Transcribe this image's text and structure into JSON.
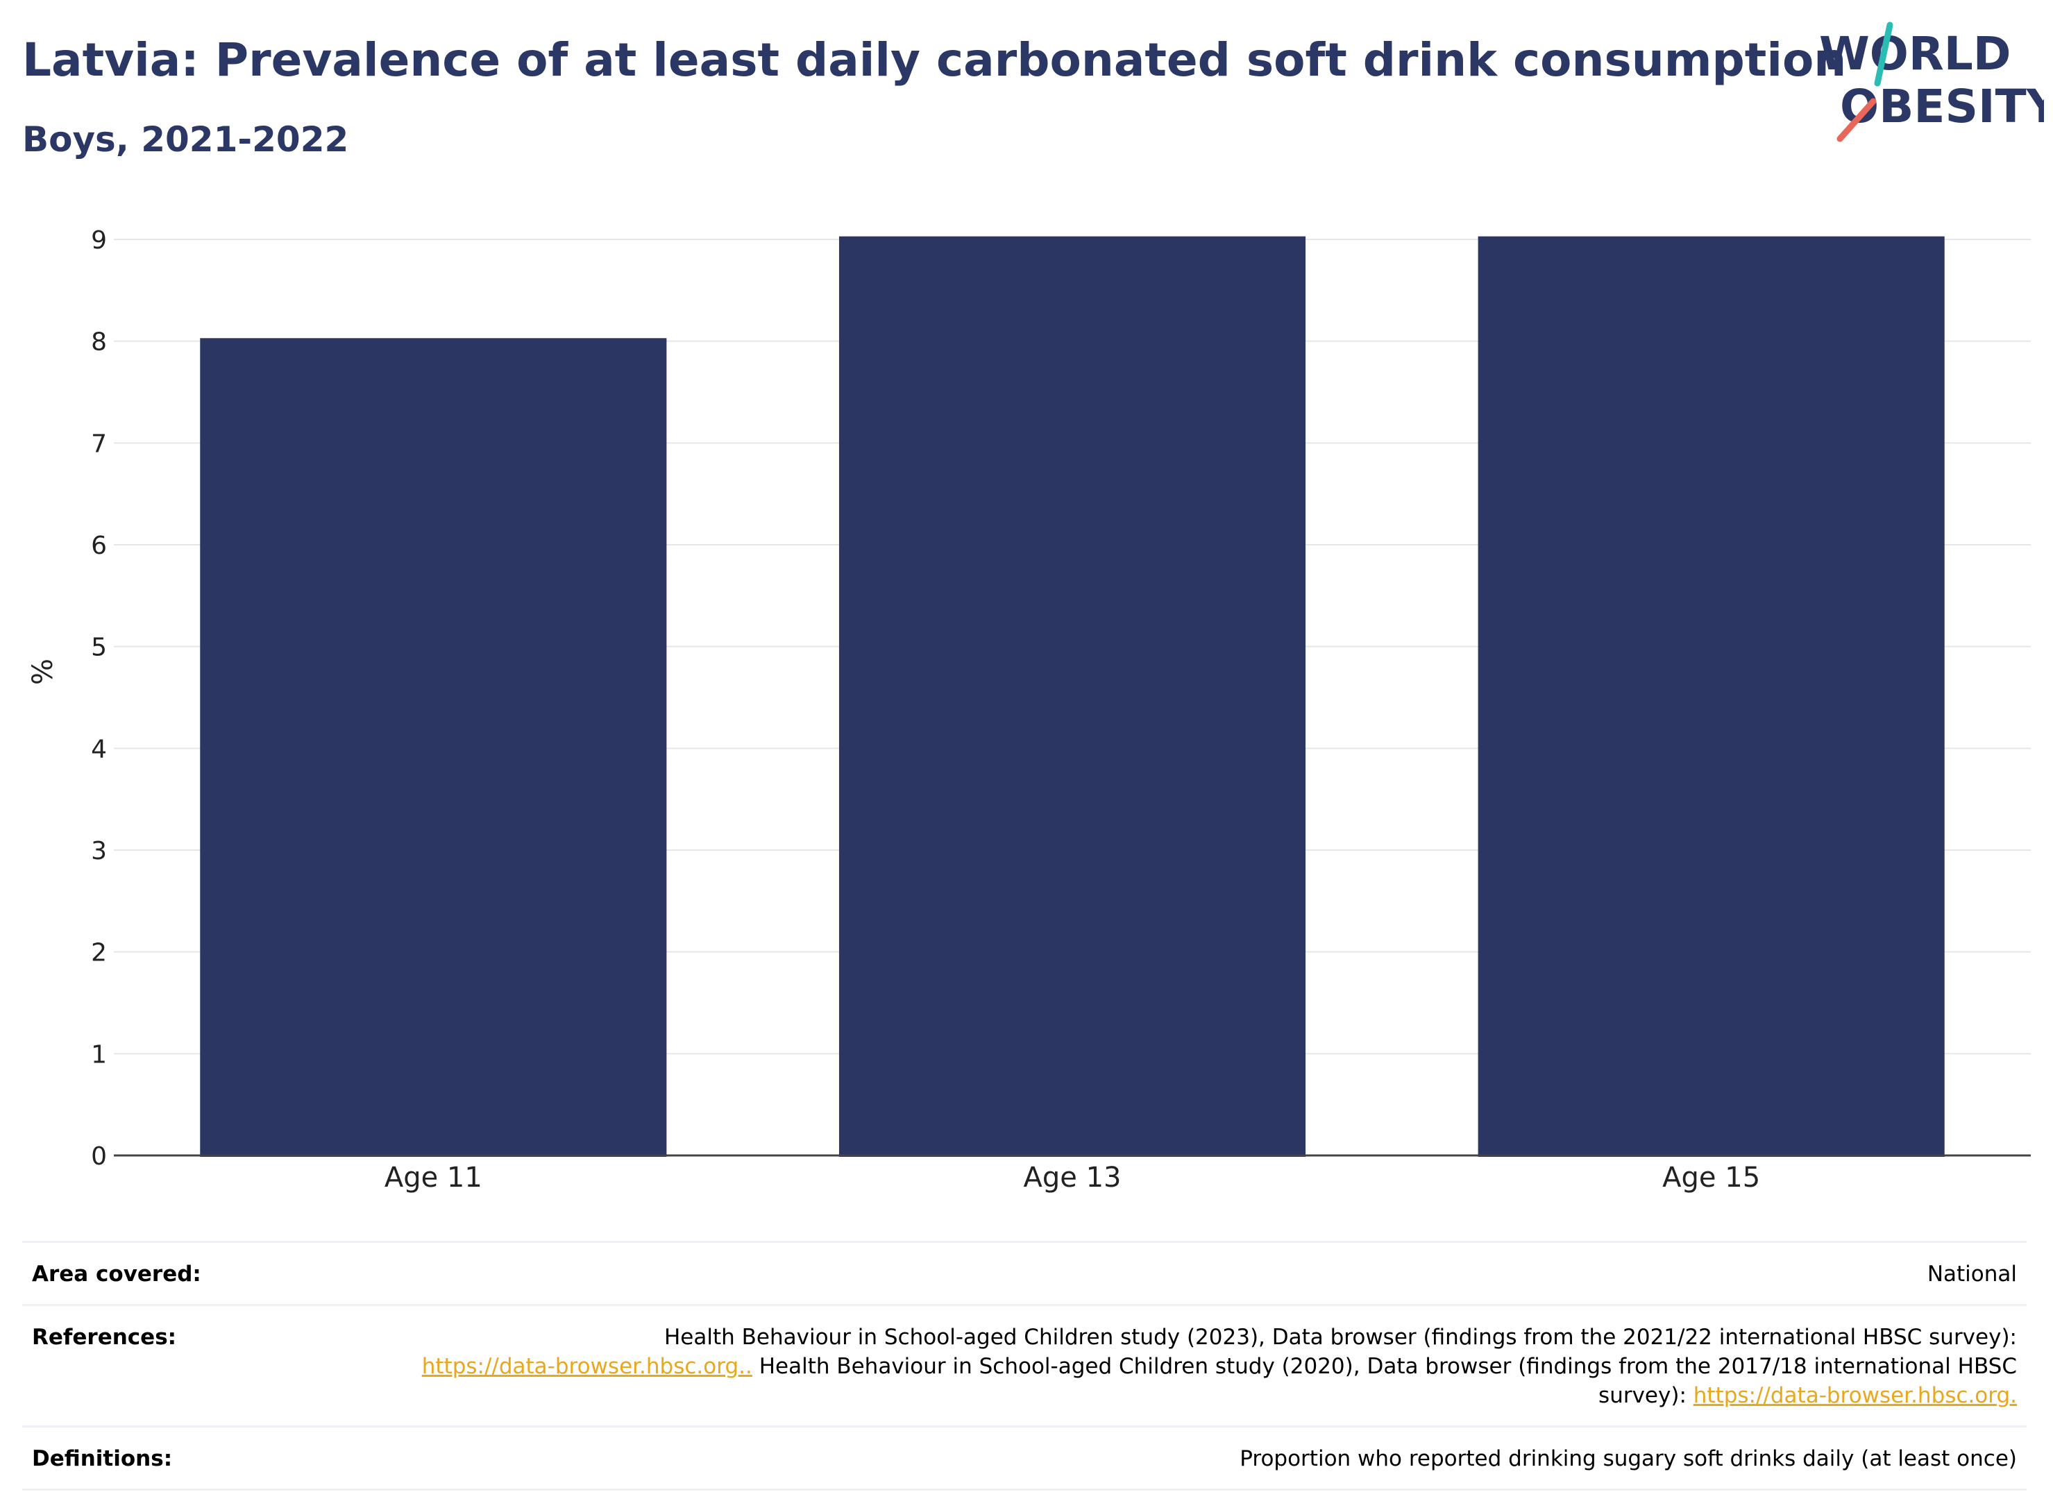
{
  "header": {
    "title": "Latvia: Prevalence of at least daily carbonated soft drink consumption",
    "subtitle": "Boys, 2021-2022"
  },
  "logo": {
    "line1": "WORLD",
    "line2": "OBESITY",
    "accent_teal": "#2bbcb3",
    "accent_coral": "#e8675a",
    "text_color": "#2b3765"
  },
  "chart_data": {
    "type": "bar",
    "categories": [
      "Age 11",
      "Age 13",
      "Age 15"
    ],
    "values": [
      8.03,
      9.03,
      9.03
    ],
    "xlabel": "",
    "ylabel": "%",
    "ylim": [
      0,
      9
    ],
    "yticks": [
      "0",
      "1",
      "2",
      "3",
      "4",
      "5",
      "6",
      "7",
      "8",
      "9"
    ],
    "bar_color": "#2b3662",
    "grid": true,
    "legend": "none"
  },
  "info": {
    "area_key": "Area covered:",
    "area_value": "National",
    "references_key": "References:",
    "ref_part1": "Health Behaviour in School-aged Children study (2023), Data browser (findings from the 2021/22 international HBSC survey):",
    "ref_link1": "https://data-browser.hbsc.org..",
    "ref_part2": " Health Behaviour in School-aged Children study (2020), Data browser (findings from the 2017/18 international HBSC survey): ",
    "ref_link2": "https://data-browser.hbsc.org.",
    "definitions_key": "Definitions:",
    "definitions_value": "Proportion who reported drinking sugary soft drinks daily (at least once)"
  }
}
